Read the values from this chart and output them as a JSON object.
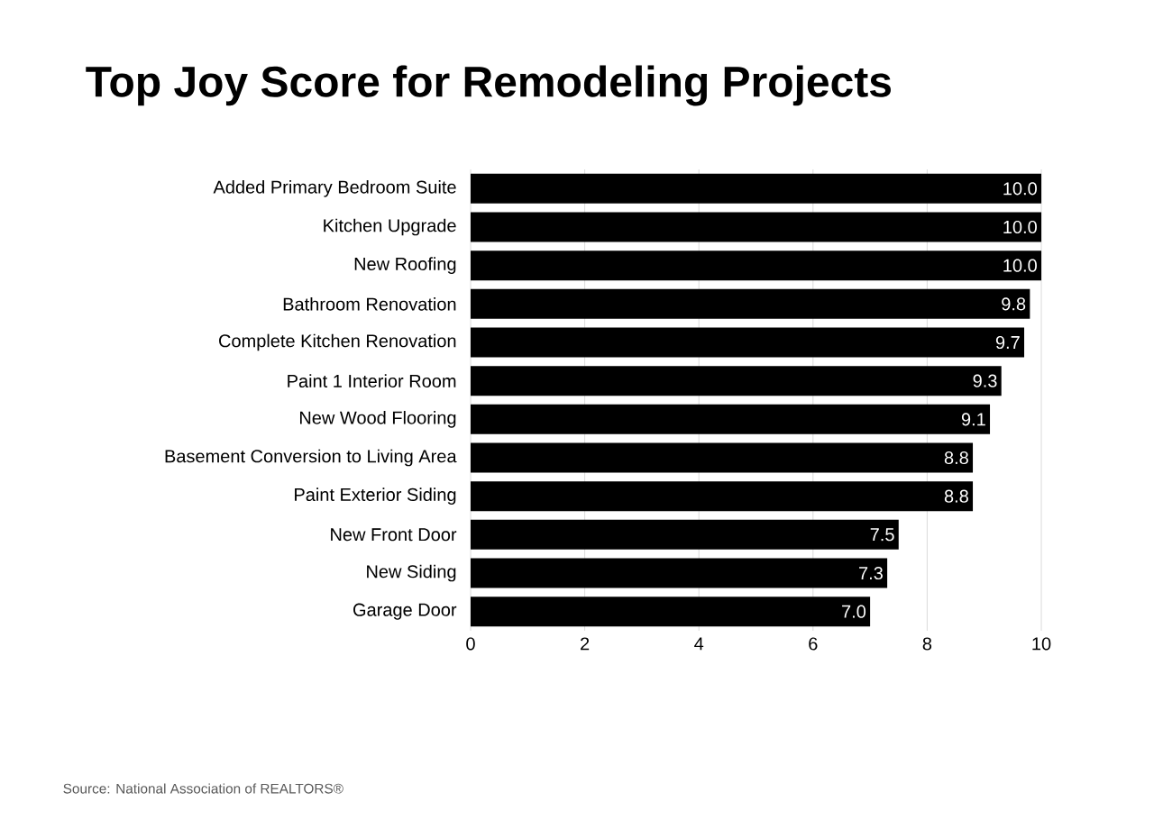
{
  "chart_data": {
    "type": "bar",
    "orientation": "horizontal",
    "title": "Top Joy Score for Remodeling Projects",
    "categories": [
      "Added Primary Bedroom Suite",
      "Kitchen Upgrade",
      "New Roofing",
      "Bathroom Renovation",
      "Complete Kitchen Renovation",
      "Paint 1 Interior Room",
      "New Wood Flooring",
      "Basement Conversion to Living Area",
      "Paint Exterior Siding",
      "New Front Door",
      "New Siding",
      "Garage Door"
    ],
    "values": [
      10,
      10,
      10,
      9.8,
      9.7,
      9.3,
      9.1,
      8.8,
      8.8,
      7.5,
      7.3,
      7.0
    ],
    "value_labels": [
      "10.0",
      "10.0",
      "10.0",
      "9.8",
      "9.7",
      "9.3",
      "9.1",
      "8.8",
      "8.8",
      "7.5",
      "7.3",
      "7.0"
    ],
    "color": "#000000",
    "xlim": [
      0,
      10
    ],
    "xticks": [
      0,
      2,
      4,
      6,
      8,
      10
    ],
    "grid": "x",
    "annotations": [
      "Source: National Association of REALTORS®"
    ]
  }
}
